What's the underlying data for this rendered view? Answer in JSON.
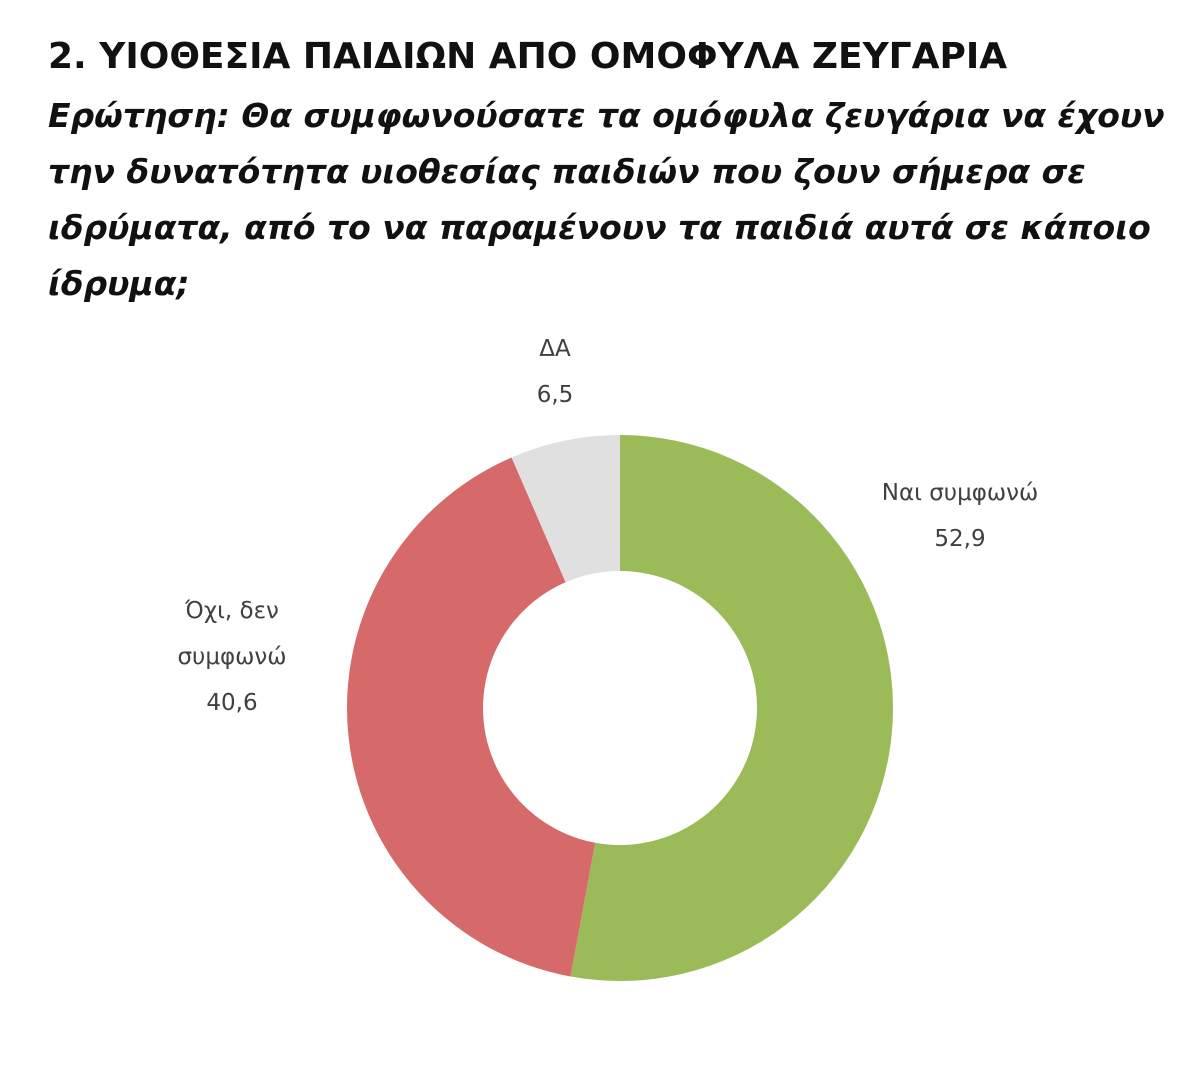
{
  "chart_data": {
    "type": "donut",
    "title": "2. ΥΙΟΘΕΣΙΑ ΠΑΙΔΙΩΝ ΑΠΟ ΟΜΟΦΥΛΑ ΖΕΥΓΑΡΙΑ",
    "subtitle": "Ερώτηση: Θα συμφωνούσατε τα ομόφυλα ζευγάρια να έχουν την δυνατότητα υιοθεσίας παιδιών που ζουν σήμερα σε ιδρύματα, από το να παραμένουν τα παιδιά αυτά σε κάποιο ίδρυμα;",
    "categories": [
      "Ναι συμφωνώ",
      "Όχι, δεν συμφωνώ",
      "ΔΑ"
    ],
    "values": [
      52.9,
      40.6,
      6.5
    ],
    "value_labels": [
      "52,9",
      "40,6",
      "6,5"
    ],
    "colors": [
      "#9bbb59",
      "#d6696a",
      "#e0e0e0"
    ]
  }
}
